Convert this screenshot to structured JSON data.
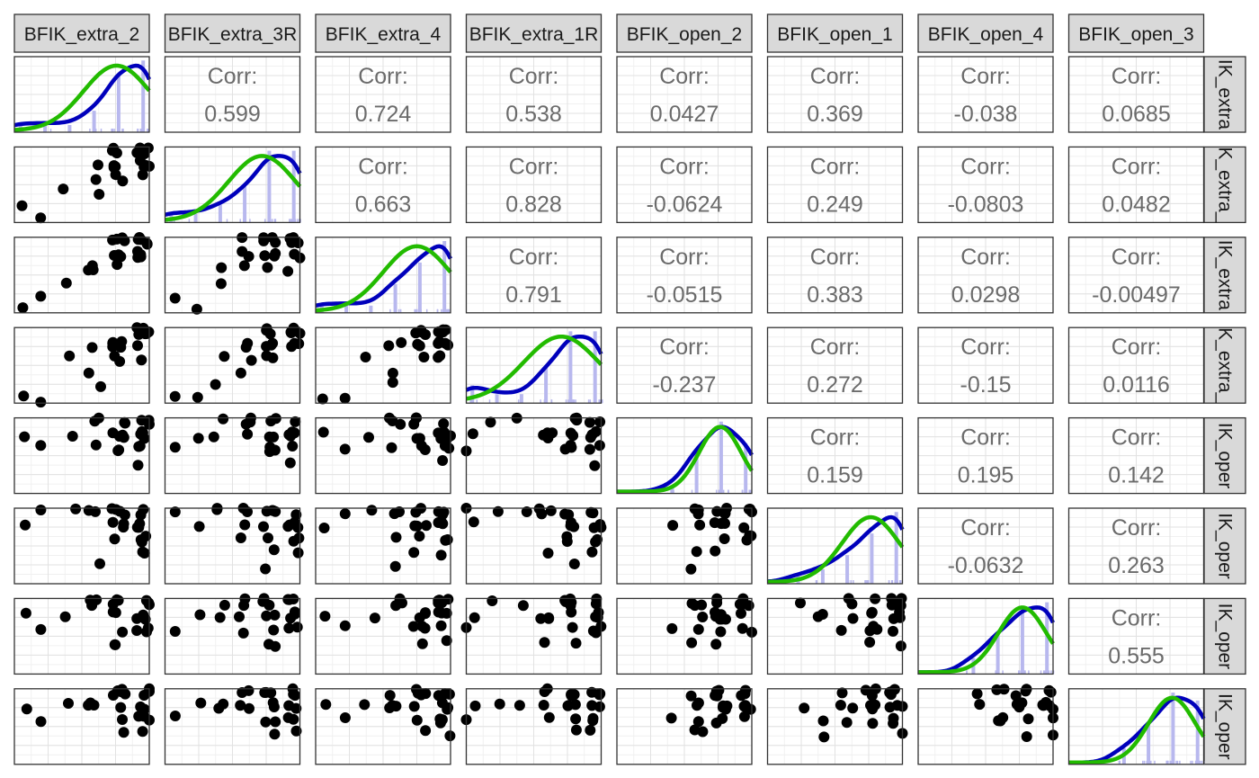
{
  "chart_data": {
    "type": "scatter",
    "variables": [
      "BFIK_extra_2",
      "BFIK_extra_3R",
      "BFIK_extra_4",
      "BFIK_extra_1R",
      "BFIK_open_2",
      "BFIK_open_1",
      "BFIK_open_4",
      "BFIK_open_3"
    ],
    "column_strip_labels": [
      "BFIK_extra_2",
      "BFIK_extra_3R",
      "BFIK_extra_4",
      "BFIK_extra_1R",
      "BFIK_open_2",
      "BFIK_open_1",
      "BFIK_open_4",
      "BFIK_open_3"
    ],
    "row_strip_labels": [
      "IK_extra",
      "K_extra_",
      "IK_extra",
      "K_extra_",
      "IK_oper",
      "IK_oper",
      "IK_oper",
      "IK_oper"
    ],
    "corr_label": "Corr:",
    "correlations": [
      {
        "row": 0,
        "col": 1,
        "value": "0.599"
      },
      {
        "row": 0,
        "col": 2,
        "value": "0.724"
      },
      {
        "row": 0,
        "col": 3,
        "value": "0.538"
      },
      {
        "row": 0,
        "col": 4,
        "value": "0.0427"
      },
      {
        "row": 0,
        "col": 5,
        "value": "0.369"
      },
      {
        "row": 0,
        "col": 6,
        "value": "-0.038"
      },
      {
        "row": 0,
        "col": 7,
        "value": "0.0685"
      },
      {
        "row": 1,
        "col": 2,
        "value": "0.663"
      },
      {
        "row": 1,
        "col": 3,
        "value": "0.828"
      },
      {
        "row": 1,
        "col": 4,
        "value": "-0.0624"
      },
      {
        "row": 1,
        "col": 5,
        "value": "0.249"
      },
      {
        "row": 1,
        "col": 6,
        "value": "-0.0803"
      },
      {
        "row": 1,
        "col": 7,
        "value": "0.0482"
      },
      {
        "row": 2,
        "col": 3,
        "value": "0.791"
      },
      {
        "row": 2,
        "col": 4,
        "value": "-0.0515"
      },
      {
        "row": 2,
        "col": 5,
        "value": "0.383"
      },
      {
        "row": 2,
        "col": 6,
        "value": "0.0298"
      },
      {
        "row": 2,
        "col": 7,
        "value": "-0.00497"
      },
      {
        "row": 3,
        "col": 4,
        "value": "-0.237"
      },
      {
        "row": 3,
        "col": 5,
        "value": "0.272"
      },
      {
        "row": 3,
        "col": 6,
        "value": "-0.15"
      },
      {
        "row": 3,
        "col": 7,
        "value": "0.0116"
      },
      {
        "row": 4,
        "col": 5,
        "value": "0.159"
      },
      {
        "row": 4,
        "col": 6,
        "value": "0.195"
      },
      {
        "row": 4,
        "col": 7,
        "value": "0.142"
      },
      {
        "row": 5,
        "col": 6,
        "value": "-0.0632"
      },
      {
        "row": 5,
        "col": 7,
        "value": "0.263"
      },
      {
        "row": 6,
        "col": 7,
        "value": "0.555"
      }
    ],
    "observations": [
      [
        6,
        5,
        6,
        6,
        4,
        6,
        6,
        6
      ],
      [
        6,
        6,
        6,
        6,
        5,
        5,
        6,
        5
      ],
      [
        6,
        5,
        5,
        6,
        6,
        6,
        5,
        6
      ],
      [
        5,
        6,
        6,
        5,
        5,
        6,
        6,
        4
      ],
      [
        5,
        4,
        5,
        5,
        6,
        5,
        4,
        6
      ],
      [
        6,
        6,
        6,
        6,
        5,
        4,
        5,
        5
      ],
      [
        5,
        5,
        6,
        5,
        4,
        6,
        6,
        3
      ],
      [
        6,
        6,
        5,
        6,
        5,
        5,
        4,
        6
      ],
      [
        4,
        4,
        4,
        3,
        6,
        6,
        6,
        5
      ],
      [
        5,
        5,
        5,
        5,
        4,
        5,
        3,
        5
      ],
      [
        6,
        5,
        6,
        4,
        5,
        3,
        5,
        4
      ],
      [
        5,
        6,
        4,
        5,
        6,
        4,
        6,
        6
      ],
      [
        3,
        3,
        3,
        4,
        5,
        6,
        5,
        5
      ],
      [
        6,
        6,
        6,
        6,
        3,
        5,
        4,
        4
      ],
      [
        5,
        4,
        5,
        4,
        5,
        6,
        5,
        6
      ],
      [
        4,
        5,
        4,
        5,
        4,
        2,
        6,
        5
      ],
      [
        6,
        5,
        5,
        6,
        6,
        4,
        4,
        4
      ],
      [
        5,
        6,
        6,
        5,
        5,
        5,
        5,
        6
      ],
      [
        4,
        3,
        4,
        2,
        6,
        6,
        6,
        5
      ],
      [
        6,
        6,
        5,
        6,
        4,
        3,
        5,
        3
      ],
      [
        5,
        5,
        6,
        4,
        5,
        6,
        3,
        6
      ],
      [
        1,
        2,
        1,
        1,
        5,
        5,
        5,
        5
      ],
      [
        2,
        1,
        2,
        1,
        4,
        6,
        4,
        4
      ],
      [
        6,
        4,
        6,
        5,
        6,
        4,
        6,
        5
      ]
    ],
    "density_line_color": "#0000bb",
    "normal_line_color": "#22bb00",
    "point_color": "#000000",
    "bar_color": "#b8b8ee",
    "strip_fill": "#d9d9d9",
    "grid": true
  }
}
